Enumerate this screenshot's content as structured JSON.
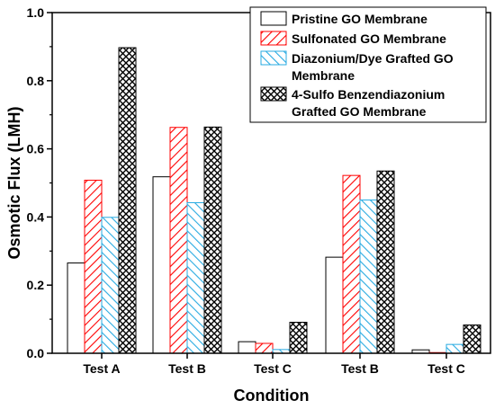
{
  "chart_data": {
    "type": "bar",
    "xlabel": "Condition",
    "ylabel": "Osmotic Flux (LMH)",
    "ylim": [
      0,
      1.0
    ],
    "yticks": [
      "0.0",
      "0.2",
      "0.4",
      "0.6",
      "0.8",
      "1.0"
    ],
    "categories": [
      "Test A",
      "Test B",
      "Test C",
      "Test B",
      "Test C"
    ],
    "legend_position": "top-right",
    "grid": false,
    "series": [
      {
        "name": "Pristine GO Membrane",
        "legend_lines": [
          "Pristine GO Membrane"
        ],
        "pattern": "none",
        "color": "#000000",
        "values": [
          0.265,
          0.518,
          0.034,
          0.282,
          0.01
        ]
      },
      {
        "name": "Sulfonated GO Membrane",
        "legend_lines": [
          "Sulfonated GO Membrane"
        ],
        "pattern": "diagonal",
        "color": "#ff0000",
        "values": [
          0.508,
          0.663,
          0.029,
          0.522,
          0.002
        ]
      },
      {
        "name": "Diazonium/Dye Grafted GO Membrane",
        "legend_lines": [
          "Diazonium/Dye Grafted GO",
          "Membrane"
        ],
        "pattern": "diagonal-reverse",
        "color": "#29abe2",
        "values": [
          0.399,
          0.442,
          0.011,
          0.45,
          0.026
        ]
      },
      {
        "name": "4-Sulfo Benzendiazonium Grafted GO Membrane",
        "legend_lines": [
          "4-Sulfo Benzendiazonium",
          "Grafted GO Membrane"
        ],
        "pattern": "crosshatch",
        "color": "#000000",
        "values": [
          0.897,
          0.664,
          0.091,
          0.535,
          0.083
        ]
      }
    ]
  }
}
